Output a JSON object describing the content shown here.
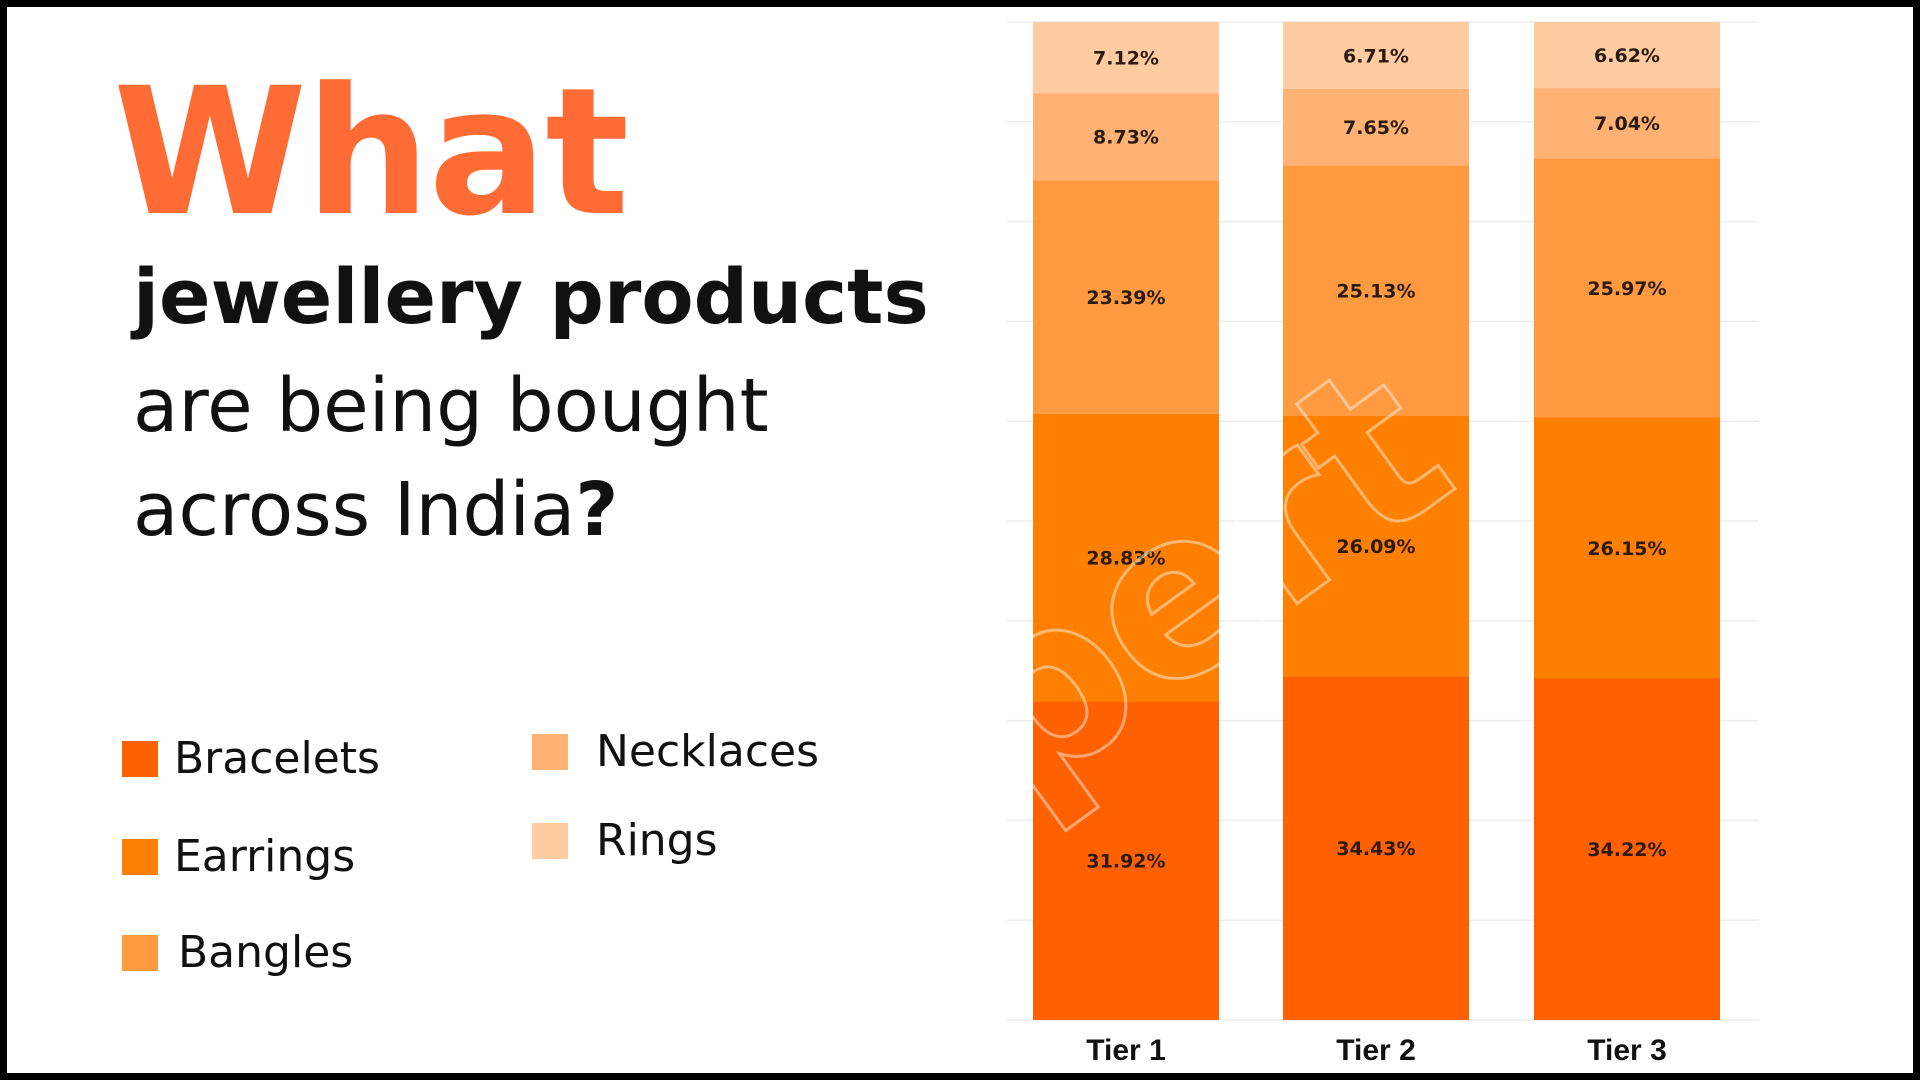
{
  "headline": {
    "line1": "What",
    "line2": "jewellery products",
    "line3": "are being bought",
    "line4_text": "across India",
    "line4_mark": "?"
  },
  "watermark": "xpert",
  "colors": {
    "accent": "#ff6b35",
    "Bracelets": "#ff6000",
    "Earrings": "#ff7f00",
    "Bangles": "#ff9a40",
    "Necklaces": "#ffb273",
    "Rings": "#ffcba1"
  },
  "legend": [
    {
      "name": "Bracelets"
    },
    {
      "name": "Earrings"
    },
    {
      "name": "Bangles"
    },
    {
      "name": "Necklaces"
    },
    {
      "name": "Rings"
    }
  ],
  "chart_data": {
    "type": "bar",
    "stacked": true,
    "categories": [
      "Tier 1",
      "Tier 2",
      "Tier 3"
    ],
    "series": [
      {
        "name": "Bracelets",
        "values": [
          31.92,
          34.43,
          34.22
        ],
        "labels": [
          "31.92%",
          "34.43%",
          "34.22%"
        ]
      },
      {
        "name": "Earrings",
        "values": [
          28.83,
          26.09,
          26.15
        ],
        "labels": [
          "28.83%",
          "26.09%",
          "26.15%"
        ]
      },
      {
        "name": "Bangles",
        "values": [
          23.39,
          25.13,
          25.97
        ],
        "labels": [
          "23.39%",
          "25.13%",
          "25.97%"
        ]
      },
      {
        "name": "Necklaces",
        "values": [
          8.73,
          7.65,
          7.04
        ],
        "labels": [
          "8.73%",
          "7.65%",
          "7.04%"
        ]
      },
      {
        "name": "Rings",
        "values": [
          7.12,
          6.71,
          6.62
        ],
        "labels": [
          "7.12%",
          "6.71%",
          "6.62%"
        ]
      }
    ],
    "ylim": [
      0,
      100
    ],
    "grid": true,
    "legend_position": "left"
  }
}
